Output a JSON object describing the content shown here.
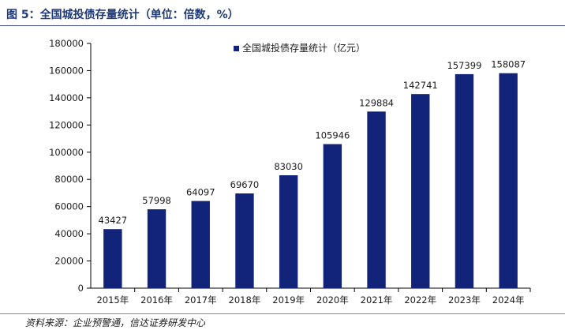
{
  "figure": {
    "title": "图 5：全国城投债存量统计（单位：倍数，%）",
    "source": "资料来源：企业预警通，信达证券研发中心"
  },
  "colors": {
    "bar": "#12237a",
    "axis": "#000000",
    "title": "#1f3a7a"
  },
  "chart_data": {
    "type": "bar",
    "title": "",
    "xlabel": "",
    "ylabel": "",
    "categories": [
      "2015年",
      "2016年",
      "2017年",
      "2018年",
      "2019年",
      "2020年",
      "2021年",
      "2022年",
      "2023年",
      "2024年"
    ],
    "series": [
      {
        "name": "全国城投债存量统计（亿元）",
        "values": [
          43427,
          57998,
          64097,
          69670,
          83030,
          105946,
          129884,
          142741,
          157399,
          158087
        ]
      }
    ],
    "ylim": [
      0,
      180000
    ],
    "yticks": [
      0,
      20000,
      40000,
      60000,
      80000,
      100000,
      120000,
      140000,
      160000,
      180000
    ],
    "grid": false,
    "legend_position": "top-center",
    "data_labels": true
  }
}
